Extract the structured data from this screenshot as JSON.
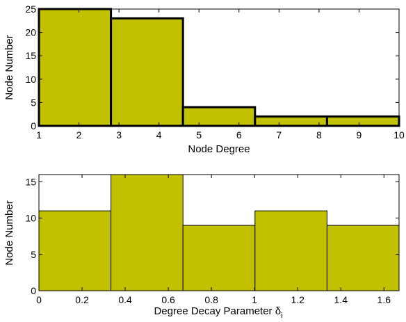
{
  "chart_data": [
    {
      "type": "bar",
      "xlabel": "Node Degree",
      "ylabel": "Node Number",
      "xlim": [
        1,
        10
      ],
      "ylim": [
        0,
        25
      ],
      "xticks": [
        "1",
        "2",
        "3",
        "4",
        "5",
        "6",
        "7",
        "8",
        "9",
        "10"
      ],
      "yticks": [
        "0",
        "5",
        "10",
        "15",
        "20",
        "25"
      ],
      "bins": [
        {
          "x0": 1.0,
          "x1": 2.8,
          "value": 25
        },
        {
          "x0": 2.8,
          "x1": 4.6,
          "value": 23
        },
        {
          "x0": 4.6,
          "x1": 6.4,
          "value": 4
        },
        {
          "x0": 6.4,
          "x1": 8.2,
          "value": 2
        },
        {
          "x0": 8.2,
          "x1": 10.0,
          "value": 2
        }
      ],
      "bar_color": "#c1c100",
      "edge_color": "#000000",
      "edge_bold": true,
      "grid": false
    },
    {
      "type": "bar",
      "xlabel": "Degree Decay Parameter δ",
      "xlabel_subscript": "i",
      "ylabel": "Node Number",
      "xlim": [
        0,
        1.67
      ],
      "ylim": [
        0,
        16
      ],
      "xticks": [
        "0",
        "0.2",
        "0.4",
        "0.6",
        "0.8",
        "1",
        "1.2",
        "1.4",
        "1.6"
      ],
      "xtick_values": [
        0,
        0.2,
        0.4,
        0.6,
        0.8,
        1.0,
        1.2,
        1.4,
        1.6
      ],
      "yticks": [
        "0",
        "5",
        "10",
        "15"
      ],
      "ytick_values": [
        0,
        5,
        10,
        15
      ],
      "bins": [
        {
          "x0": 0.0,
          "x1": 0.334,
          "value": 11
        },
        {
          "x0": 0.334,
          "x1": 0.668,
          "value": 16
        },
        {
          "x0": 0.668,
          "x1": 1.002,
          "value": 9
        },
        {
          "x0": 1.002,
          "x1": 1.336,
          "value": 11
        },
        {
          "x0": 1.336,
          "x1": 1.67,
          "value": 9
        }
      ],
      "bar_color": "#c1c100",
      "edge_color": "#000000",
      "edge_bold": false,
      "grid": false
    }
  ]
}
